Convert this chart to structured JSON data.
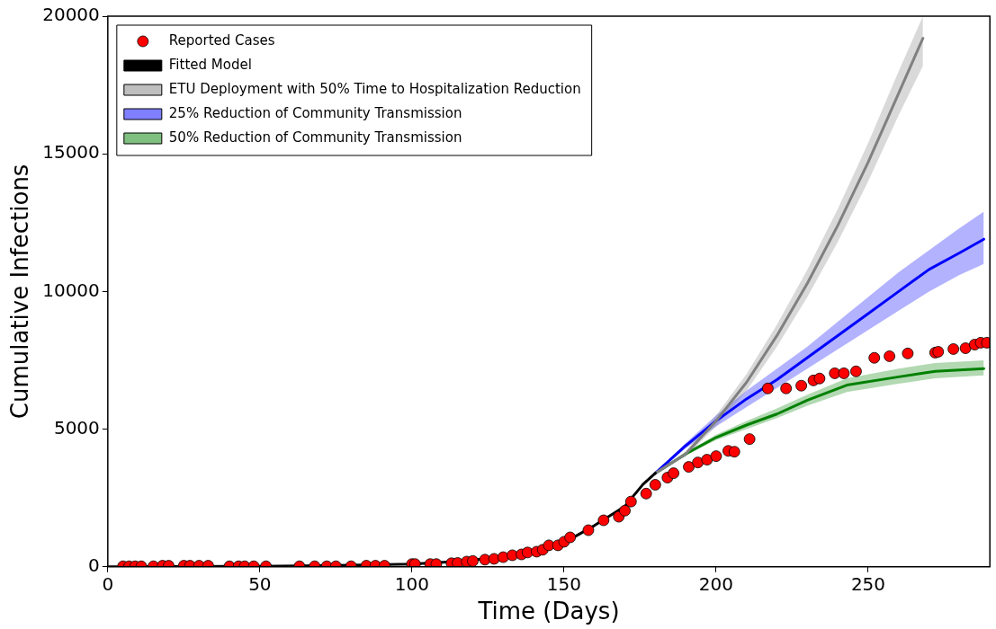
{
  "chart_data": {
    "type": "line",
    "xlabel": "Time (Days)",
    "ylabel": "Cumulative Infections",
    "xlim": [
      0,
      290
    ],
    "xticks": [
      0,
      50,
      100,
      150,
      200,
      250
    ],
    "ylim": [
      0,
      20000
    ],
    "yticks": [
      0,
      5000,
      10000,
      15000,
      20000
    ],
    "grid": false,
    "legend": "top left",
    "series": [
      {
        "name": "Fitted Model",
        "color": "#000000",
        "marker": "none",
        "x": [
          0,
          25,
          50,
          75,
          100,
          115,
          130,
          145,
          152,
          160,
          170,
          176,
          180
        ],
        "values": [
          0,
          10,
          20,
          50,
          100,
          200,
          350,
          700,
          1000,
          1500,
          2200,
          3000,
          3400
        ]
      },
      {
        "name": "ETU Deployment with 50% Time to Hospitalization Reduction",
        "color": "#808080",
        "marker": "none",
        "x": [
          180,
          190,
          200,
          210,
          220,
          230,
          240,
          250,
          260,
          268
        ],
        "values": [
          3400,
          4100,
          5300,
          6700,
          8400,
          10300,
          12400,
          14700,
          17200,
          19200
        ],
        "lower": [
          3400,
          4000,
          5100,
          6400,
          8000,
          9800,
          11800,
          14000,
          16400,
          18200
        ],
        "upper": [
          3400,
          4200,
          5500,
          7000,
          8800,
          10800,
          13000,
          15400,
          18000,
          20000
        ]
      },
      {
        "name": "25% Reduction of Community Transmission",
        "color": "#0000ff",
        "marker": "none",
        "x": [
          180,
          190,
          200,
          210,
          220,
          230,
          240,
          250,
          260,
          270,
          280,
          288
        ],
        "values": [
          3400,
          4400,
          5300,
          6100,
          6800,
          7600,
          8400,
          9200,
          10000,
          10800,
          11400,
          11900
        ],
        "lower": [
          3400,
          4300,
          5100,
          5800,
          6500,
          7200,
          7900,
          8600,
          9300,
          10000,
          10600,
          11000
        ],
        "upper": [
          3400,
          4500,
          5500,
          6400,
          7200,
          8000,
          8900,
          9800,
          10700,
          11500,
          12300,
          12900
        ]
      },
      {
        "name": "50% Reduction of Community Transmission",
        "color": "#008000",
        "marker": "none",
        "x": [
          180,
          190,
          200,
          210,
          220,
          230,
          243,
          260,
          272,
          288
        ],
        "values": [
          3400,
          4100,
          4700,
          5150,
          5550,
          6050,
          6600,
          6900,
          7100,
          7200
        ],
        "lower": [
          3400,
          4050,
          4600,
          5000,
          5400,
          5850,
          6350,
          6650,
          6850,
          6950
        ],
        "upper": [
          3400,
          4150,
          4800,
          5300,
          5750,
          6250,
          6850,
          7200,
          7400,
          7500
        ]
      },
      {
        "name": "Reported Cases",
        "type": "scatter",
        "color": "#ff0000",
        "marker": "circle",
        "x": [
          5,
          7,
          9,
          11,
          15,
          18,
          20,
          25,
          27,
          30,
          33,
          40,
          43,
          45,
          48,
          52,
          63,
          68,
          72,
          75,
          80,
          85,
          88,
          91,
          100,
          101,
          106,
          108,
          113,
          115,
          118,
          120,
          124,
          127,
          130,
          133,
          136,
          138,
          141,
          143,
          145,
          148,
          150,
          152,
          158,
          163,
          168,
          170,
          172,
          177,
          180,
          184,
          186,
          191,
          194,
          197,
          200,
          204,
          206,
          211,
          217,
          223,
          228,
          232,
          234,
          239,
          242,
          246,
          252,
          257,
          263,
          272,
          273,
          278,
          282,
          285,
          287,
          289
        ],
        "values": [
          20,
          20,
          20,
          20,
          20,
          40,
          40,
          40,
          40,
          40,
          40,
          20,
          20,
          20,
          20,
          20,
          20,
          20,
          20,
          20,
          20,
          40,
          40,
          40,
          100,
          100,
          100,
          100,
          130,
          140,
          190,
          210,
          260,
          290,
          350,
          420,
          450,
          520,
          550,
          620,
          780,
          780,
          910,
          1070,
          1330,
          1690,
          1820,
          2040,
          2370,
          2660,
          2980,
          3240,
          3400,
          3630,
          3790,
          3890,
          4020,
          4210,
          4180,
          4640,
          6480,
          6480,
          6580,
          6770,
          6840,
          7030,
          7030,
          7100,
          7590,
          7650,
          7750,
          7780,
          7810,
          7910,
          7940,
          8070,
          8140,
          8140
        ]
      }
    ]
  }
}
